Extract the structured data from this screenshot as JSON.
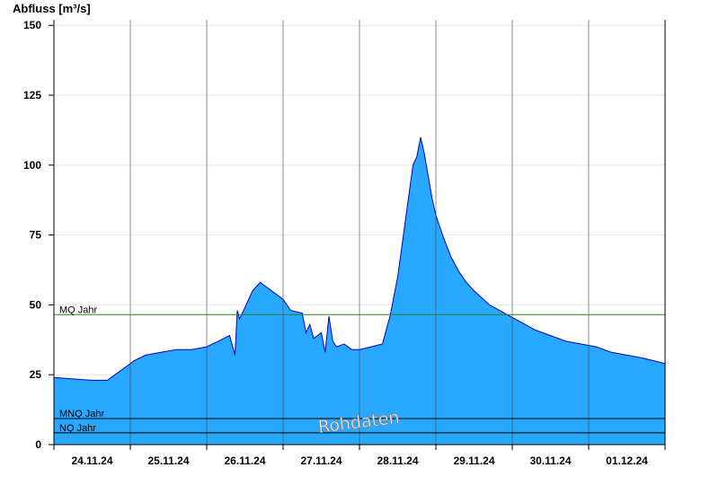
{
  "chart_data": {
    "type": "area",
    "ylabel": "Abfluss [m³/s]",
    "ylim": [
      0,
      152
    ],
    "yticks": [
      0,
      25,
      50,
      75,
      100,
      125,
      150
    ],
    "xlim": [
      0,
      8
    ],
    "xticks": [
      {
        "pos": 0.5,
        "label": "24.11.24"
      },
      {
        "pos": 1.5,
        "label": "25.11.24"
      },
      {
        "pos": 2.5,
        "label": "26.11.24"
      },
      {
        "pos": 3.5,
        "label": "27.11.24"
      },
      {
        "pos": 4.5,
        "label": "28.11.24"
      },
      {
        "pos": 5.5,
        "label": "29.11.24"
      },
      {
        "pos": 6.5,
        "label": "30.11.24"
      },
      {
        "pos": 7.5,
        "label": "01.12.24"
      }
    ],
    "day_boundaries": [
      1,
      2,
      3,
      4,
      5,
      6,
      7
    ],
    "grid": "horizontal",
    "fill_color": "#29a8ff",
    "line_color": "#0000cc",
    "series": [
      {
        "x": [
          0,
          0.25,
          0.5,
          0.7,
          0.8,
          0.95,
          1.05,
          1.2,
          1.4,
          1.6,
          1.8,
          2.0,
          2.15,
          2.3,
          2.37,
          2.4,
          2.43,
          2.5,
          2.6,
          2.7,
          2.85,
          3.0,
          3.1,
          3.25,
          3.3,
          3.35,
          3.4,
          3.5,
          3.55,
          3.6,
          3.65,
          3.7,
          3.8,
          3.9,
          4.0,
          4.15,
          4.3,
          4.4,
          4.5,
          4.6,
          4.7,
          4.75,
          4.8,
          4.85,
          4.9,
          4.95,
          5.0,
          5.1,
          5.2,
          5.3,
          5.4,
          5.5,
          5.7,
          5.9,
          6.1,
          6.3,
          6.5,
          6.7,
          6.9,
          7.1,
          7.3,
          7.5,
          7.7,
          7.85,
          8.0
        ],
        "y": [
          24,
          23.5,
          23,
          23,
          25,
          28,
          30,
          32,
          33,
          34,
          34,
          35,
          37,
          39,
          32,
          48,
          45,
          49,
          55,
          58,
          55,
          52,
          48,
          47,
          40,
          43,
          38,
          40,
          33,
          46,
          37,
          35,
          36,
          34,
          34,
          35,
          36,
          46,
          60,
          80,
          100,
          103,
          110,
          104,
          96,
          88,
          82,
          74,
          67,
          62,
          58,
          55,
          50,
          47,
          44,
          41,
          39,
          37,
          36,
          35,
          33,
          32,
          31,
          30,
          29
        ]
      }
    ],
    "reference_lines": [
      {
        "name": "MQ Jahr",
        "value": 46.5,
        "color": "#2e7d2e"
      },
      {
        "name": "MNQ Jahr",
        "value": 9.3,
        "color": "#000000"
      },
      {
        "name": "NQ Jahr",
        "value": 4.2,
        "color": "#000000"
      }
    ],
    "watermark": "Rohdaten"
  }
}
